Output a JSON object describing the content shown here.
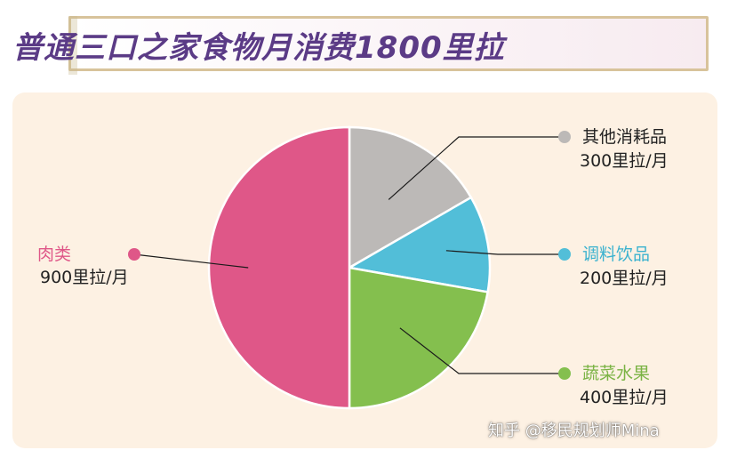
{
  "title": "普通三口之家食物月消费1800里拉",
  "watermark": "知乎 @移民规划师Mina",
  "chart_data": {
    "type": "pie",
    "total": 1800,
    "slices": [
      {
        "name": "其他消耗品",
        "value": 300,
        "value_label": "300里拉/月",
        "color": "#bcb9b7",
        "label_color": "#222222",
        "dot_color": "#bcb9b7",
        "side": "right"
      },
      {
        "name": "调料饮品",
        "value": 200,
        "value_label": "200里拉/月",
        "color": "#52bed8",
        "label_color": "#3bb2cf",
        "dot_color": "#52bed8",
        "side": "right"
      },
      {
        "name": "蔬菜水果",
        "value": 400,
        "value_label": "400里拉/月",
        "color": "#84bf4e",
        "label_color": "#7ab344",
        "dot_color": "#84bf4e",
        "side": "right"
      },
      {
        "name": "肉类",
        "value": 900,
        "value_label": "900里拉/月",
        "color": "#df5788",
        "label_color": "#df5788",
        "dot_color": "#df5788",
        "side": "left"
      }
    ]
  }
}
